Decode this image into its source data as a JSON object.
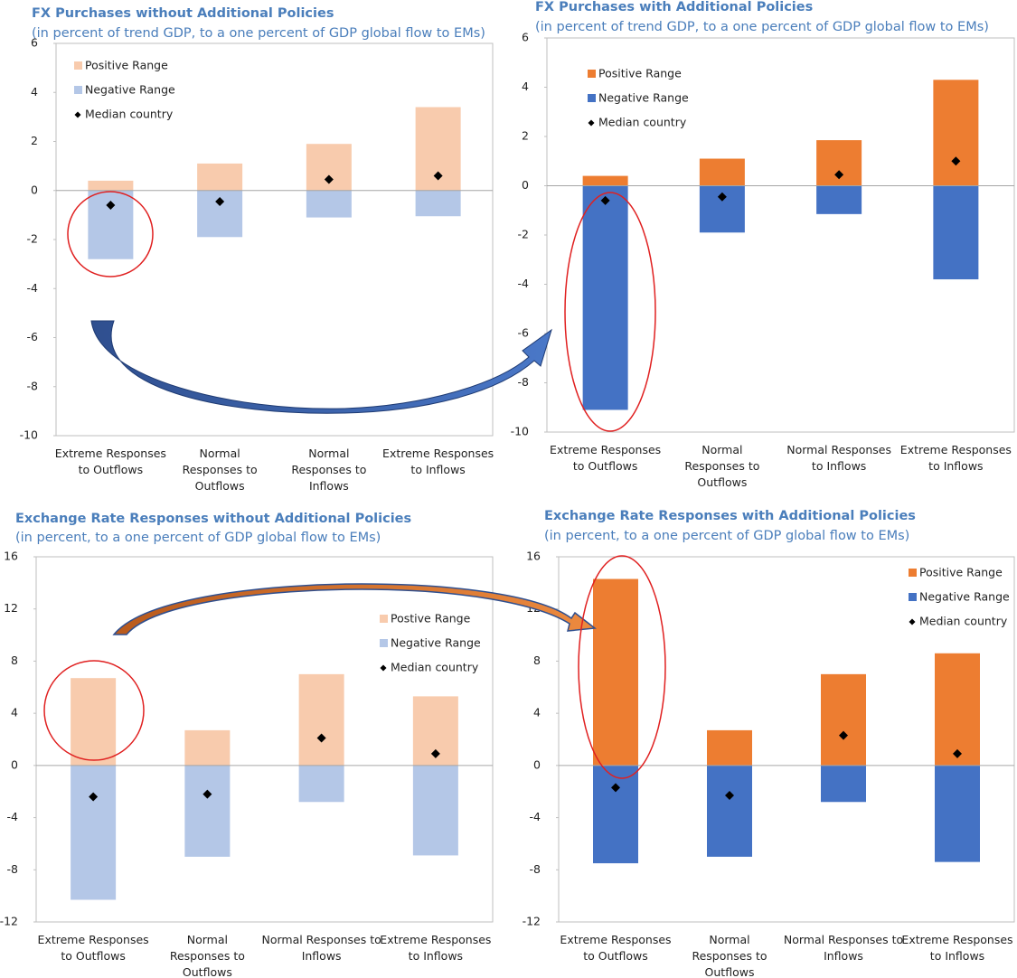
{
  "chart_data": [
    {
      "type": "bar",
      "title": "FX Purchases without Additional Policies",
      "subtitle": "(in percent of trend GDP, to a one percent of GDP global flow to EMs)",
      "categories": [
        "Extreme Responses to Outflows",
        "Normal Responses to Outflows",
        "Normal Responses to Inflows",
        "Extreme Responses to Inflows"
      ],
      "series": [
        {
          "name": "Positive Range",
          "color": "#f8cbad",
          "values": [
            0.4,
            1.1,
            1.9,
            3.4
          ]
        },
        {
          "name": "Negative Range",
          "color": "#b4c7e7",
          "values": [
            -2.8,
            -1.9,
            -1.1,
            -1.05
          ]
        },
        {
          "name": "Median country",
          "color": "#000000",
          "marker": "diamond",
          "values": [
            -0.6,
            -0.45,
            0.45,
            0.6
          ]
        }
      ],
      "ylim": [
        -10,
        6
      ],
      "yticks": [
        -10,
        -8,
        -6,
        -4,
        -2,
        0,
        2,
        4,
        6
      ],
      "legend": "upper left",
      "grid": false
    },
    {
      "type": "bar",
      "title": "FX Purchases with Additional Policies",
      "subtitle": "(in percent of trend GDP, to a one percent of GDP global flow to EMs)",
      "categories": [
        "Extreme Responses to Outflows",
        "Normal Responses to Outflows",
        "Normal Responses to Inflows",
        "Extreme Responses to Inflows"
      ],
      "series": [
        {
          "name": "Positive Range",
          "color": "#ed7d31",
          "values": [
            0.4,
            1.1,
            1.85,
            4.3
          ]
        },
        {
          "name": "Negative Range",
          "color": "#4472c4",
          "values": [
            -9.1,
            -1.9,
            -1.15,
            -3.8
          ]
        },
        {
          "name": "Median country",
          "color": "#000000",
          "marker": "diamond",
          "values": [
            -0.6,
            -0.45,
            0.45,
            1.0
          ]
        }
      ],
      "ylim": [
        -10,
        6
      ],
      "yticks": [
        -10,
        -8,
        -6,
        -4,
        -2,
        0,
        2,
        4,
        6
      ],
      "legend": "upper left",
      "grid": false
    },
    {
      "type": "bar",
      "title": "Exchange Rate Responses without Additional Policies",
      "subtitle": "(in percent, to a one percent of GDP global flow to EMs)",
      "categories": [
        "Extreme Responses to Outflows",
        "Normal Responses to Outflows",
        "Normal Responses to Inflows",
        "Extreme Responses to Inflows"
      ],
      "series": [
        {
          "name": "Postive Range",
          "color": "#f8cbad",
          "values": [
            6.7,
            2.7,
            7.0,
            5.3
          ]
        },
        {
          "name": "Negative Range",
          "color": "#b4c7e7",
          "values": [
            -10.3,
            -7.0,
            -2.8,
            -6.9
          ]
        },
        {
          "name": "Median country",
          "color": "#000000",
          "marker": "diamond",
          "values": [
            -2.4,
            -2.2,
            2.1,
            0.9
          ]
        }
      ],
      "ylim": [
        -12,
        16
      ],
      "yticks": [
        -12,
        -8,
        -4,
        0,
        4,
        8,
        12,
        16
      ],
      "legend": "upper right",
      "grid": false
    },
    {
      "type": "bar",
      "title": "Exchange Rate Responses with Additional Policies",
      "subtitle": "(in percent, to a one percent of GDP global flow to EMs)",
      "categories": [
        "Extreme Responses to Outflows",
        "Normal Responses to Outflows",
        "Normal Responses to Inflows",
        "Extreme Responses to Inflows"
      ],
      "series": [
        {
          "name": "Positive Range",
          "color": "#ed7d31",
          "values": [
            14.3,
            2.7,
            7.0,
            8.6
          ]
        },
        {
          "name": "Negative Range",
          "color": "#4472c4",
          "values": [
            -7.5,
            -7.0,
            -2.8,
            -7.4
          ]
        },
        {
          "name": "Median country",
          "color": "#000000",
          "marker": "diamond",
          "values": [
            -1.7,
            -2.3,
            2.3,
            0.9
          ]
        }
      ],
      "ylim": [
        -12,
        16
      ],
      "yticks": [
        -12,
        -8,
        -4,
        0,
        4,
        8,
        12,
        16
      ],
      "legend": "upper right",
      "grid": false
    }
  ]
}
